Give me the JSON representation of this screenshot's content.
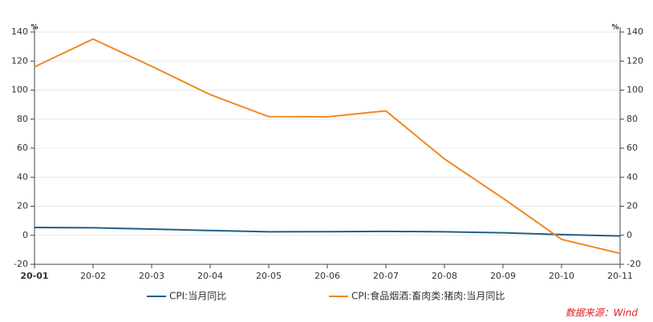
{
  "chart_data": {
    "type": "line",
    "categories": [
      "20-01",
      "20-02",
      "20-03",
      "20-04",
      "20-05",
      "20-06",
      "20-07",
      "20-08",
      "20-09",
      "20-10",
      "20-11"
    ],
    "series": [
      {
        "name": "CPI:当月同比",
        "color": "#1f5f8b",
        "values": [
          5.4,
          5.2,
          4.3,
          3.3,
          2.4,
          2.5,
          2.7,
          2.4,
          1.7,
          0.5,
          -0.5
        ]
      },
      {
        "name": "CPI:食品烟酒:畜肉类:猪肉:当月同比",
        "color": "#f0871e",
        "values": [
          116.0,
          135.2,
          116.4,
          96.9,
          81.7,
          81.6,
          85.7,
          52.6,
          25.5,
          -2.8,
          -12.5
        ]
      }
    ],
    "y_unit": "%",
    "y2_unit": "%",
    "ylim": [
      -20,
      140
    ],
    "yticks": [
      -20,
      0,
      20,
      40,
      60,
      80,
      100,
      120,
      140
    ],
    "y2lim": [
      -20,
      140
    ],
    "y2ticks": [
      -20,
      0,
      20,
      40,
      60,
      80,
      100,
      120,
      140
    ],
    "grid": true,
    "source": "数据来源：Wind"
  }
}
